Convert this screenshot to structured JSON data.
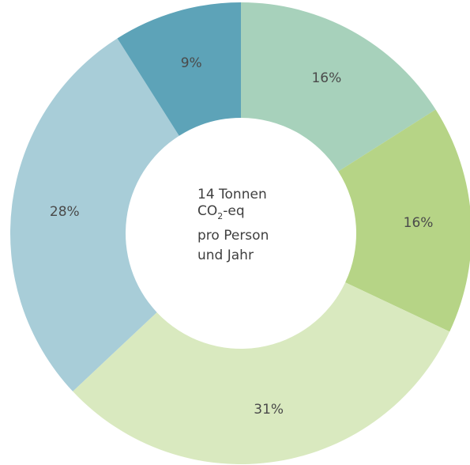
{
  "chart_data": {
    "type": "pie",
    "style": "donut",
    "values": [
      16,
      16,
      31,
      28,
      9
    ],
    "labels": [
      "16%",
      "16%",
      "31%",
      "28%",
      "9%"
    ],
    "colors": [
      "#a7d1bb",
      "#b6d486",
      "#d9e9bf",
      "#a8cdd8",
      "#5da3b8"
    ],
    "center_text": {
      "line1": "14 Tonnen",
      "line2_main": "CO",
      "line2_sub": "2",
      "line2_rest": "-eq",
      "line3": "pro Person",
      "line4": "und Jahr"
    }
  }
}
